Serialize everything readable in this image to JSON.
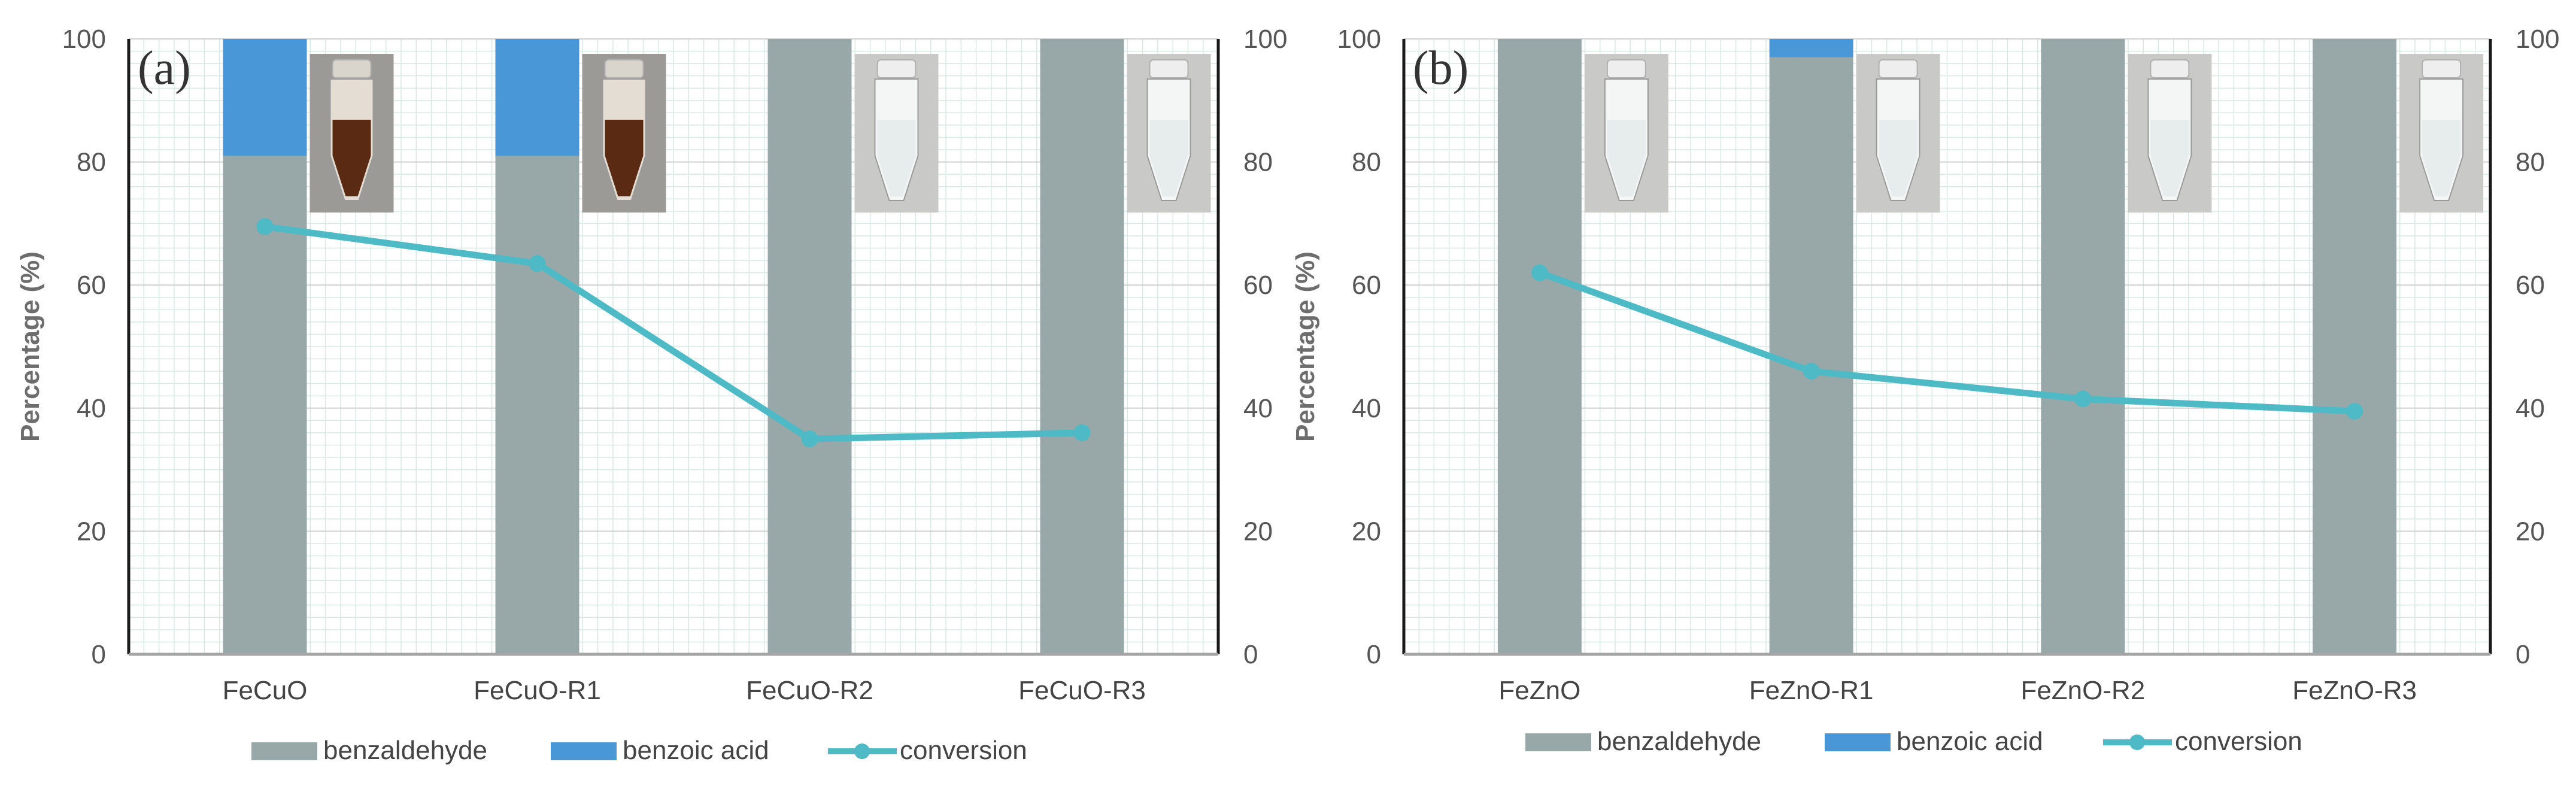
{
  "colors": {
    "benzaldehyde": "#98a7a8",
    "benzoic_acid": "#4a97d8",
    "conversion": "#4dbac6",
    "grid_minor": "#d8e8e4",
    "grid_major": "#d0d0d0",
    "axis": "#1a1a1a",
    "tick_text": "#555555"
  },
  "legend": [
    "benzaldehyde",
    "benzoic acid",
    "conversion"
  ],
  "chart_data": [
    {
      "type": "bar",
      "stacked": true,
      "title": "",
      "panel_label": "(a)",
      "ylabel": "Percentage (%)",
      "y2label": "",
      "ylim": [
        0,
        100
      ],
      "yticks": [
        0,
        20,
        40,
        60,
        80,
        100
      ],
      "categories": [
        "FeCuO",
        "FeCuO-R1",
        "FeCuO-R2",
        "FeCuO-R3"
      ],
      "series": [
        {
          "name": "benzaldehyde",
          "kind": "bar",
          "values": [
            81,
            81,
            100,
            100
          ]
        },
        {
          "name": "benzoic acid",
          "kind": "bar",
          "values": [
            19,
            19,
            0,
            0
          ]
        },
        {
          "name": "conversion",
          "kind": "line",
          "values": [
            69.5,
            63.5,
            35,
            36
          ]
        }
      ],
      "vial_photos": [
        "brown-solution-vial",
        "brown-solution-vial",
        "clear-solution-vial",
        "clear-solution-vial"
      ],
      "grid": true,
      "legend_position": "bottom"
    },
    {
      "type": "bar",
      "stacked": true,
      "title": "",
      "panel_label": "(b)",
      "ylabel": "Percentage (%)",
      "y2label": "",
      "ylim": [
        0,
        100
      ],
      "yticks": [
        0,
        20,
        40,
        60,
        80,
        100
      ],
      "categories": [
        "FeZnO",
        "FeZnO-R1",
        "FeZnO-R2",
        "FeZnO-R3"
      ],
      "series": [
        {
          "name": "benzaldehyde",
          "kind": "bar",
          "values": [
            100,
            97,
            100,
            100
          ]
        },
        {
          "name": "benzoic acid",
          "kind": "bar",
          "values": [
            0,
            3,
            0,
            0
          ]
        },
        {
          "name": "conversion",
          "kind": "line",
          "values": [
            62,
            46,
            41.5,
            39.5
          ]
        }
      ],
      "vial_photos": [
        "clear-solution-vial",
        "clear-solution-vial",
        "clear-solution-vial",
        "clear-solution-vial"
      ],
      "grid": true,
      "legend_position": "bottom"
    }
  ]
}
